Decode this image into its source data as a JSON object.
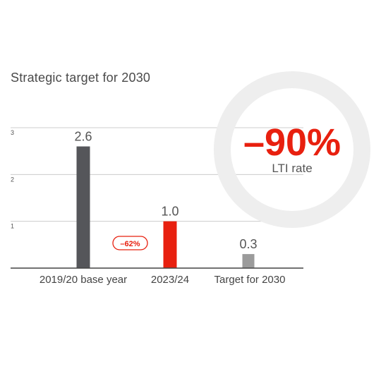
{
  "title": "Strategic target for 2030",
  "colors": {
    "dark_bar": "#55565a",
    "accent": "#e8200f",
    "light_bar": "#9b9b9b",
    "ring": "#eeeeee",
    "grid": "#cccccc",
    "axis": "#444444"
  },
  "highlight": {
    "value": "–90%",
    "label": "LTI rate"
  },
  "change_badge": "–62%",
  "chart_data": {
    "type": "bar",
    "title": "Strategic target for 2030",
    "xlabel": "",
    "ylabel": "",
    "categories": [
      "2019/20 base year",
      "2023/24",
      "Target for 2030"
    ],
    "values": [
      2.6,
      1.0,
      0.3
    ],
    "value_labels": [
      "2.6",
      "1.0",
      "0.3"
    ],
    "bar_colors": [
      "#55565a",
      "#e8200f",
      "#9b9b9b"
    ],
    "category_label_colors": [
      "#444444",
      "#e8200f",
      "#444444"
    ],
    "value_label_colors": [
      "#555555",
      "#e8200f",
      "#555555"
    ],
    "y_ticks": [
      1,
      2,
      3
    ],
    "ylim": [
      0,
      3
    ],
    "grid": true,
    "legend": "none"
  }
}
